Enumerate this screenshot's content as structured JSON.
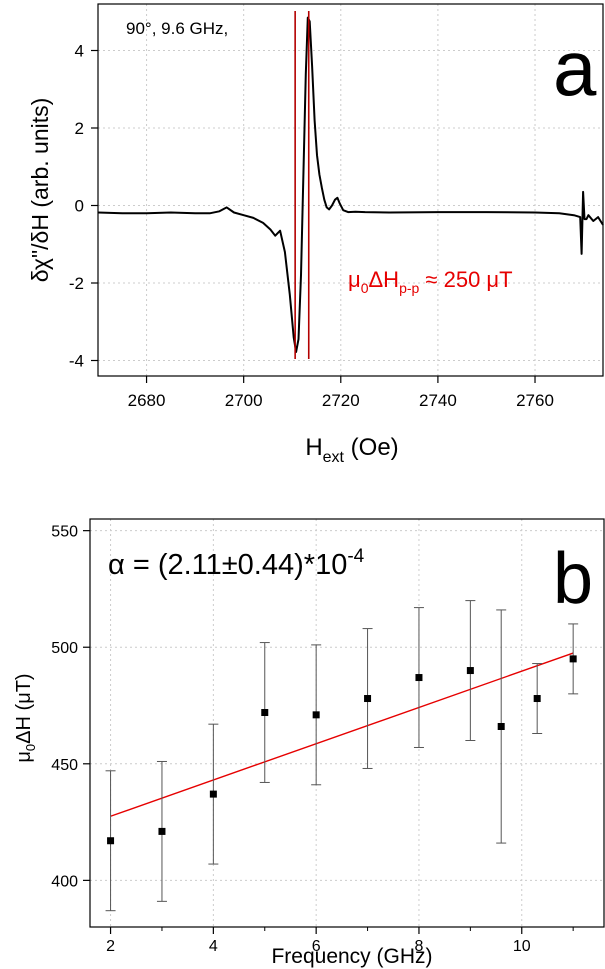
{
  "colors": {
    "trace": "#000000",
    "marker": "#b30000",
    "fit": "#e60000",
    "errbar": "#555555",
    "grid": "#cccccc"
  },
  "chart_data": [
    {
      "panel": "a",
      "type": "line",
      "panel_label": "a",
      "annotation": "90°, 9.6 GHz,",
      "xlabel_main": "H",
      "xlabel_sub": "ext",
      "xlabel_unit": " (Oe)",
      "ylabel": "δχ\"/δH (arb. units)",
      "xlim": [
        2670,
        2774
      ],
      "ylim": [
        -4.4,
        5.2
      ],
      "xticks": [
        2680,
        2700,
        2720,
        2740,
        2760
      ],
      "yticks": [
        -4,
        -2,
        0,
        2,
        4
      ],
      "grid": true,
      "linewidth_label": {
        "prefix": "μ",
        "sub1": "0",
        "mid": "ΔH",
        "sub2": "p-p",
        "suffix": " ≈ 250 μT"
      },
      "markers_x": [
        2710.6,
        2713.4
      ],
      "series": [
        {
          "x": [
            2670,
            2675,
            2680,
            2685,
            2690,
            2693,
            2695,
            2696.5,
            2698,
            2700,
            2702,
            2704,
            2705.5,
            2706.5,
            2707.5,
            2708.5,
            2709.5,
            2710.3,
            2710.8,
            2711.3,
            2711.8,
            2712.3,
            2712.8,
            2713.2,
            2713.6,
            2714.1,
            2714.6,
            2715.1,
            2715.6,
            2716.1,
            2716.6,
            2717.1,
            2717.6,
            2718.2,
            2718.8,
            2719.3,
            2719.8,
            2720.5,
            2721.5,
            2723,
            2725,
            2730,
            2740,
            2750,
            2760,
            2765,
            2768,
            2769.3,
            2769.6,
            2769.9,
            2770.2,
            2770.6,
            2771,
            2772,
            2773,
            2774
          ],
          "y": [
            -0.18,
            -0.2,
            -0.2,
            -0.18,
            -0.2,
            -0.2,
            -0.15,
            -0.05,
            -0.18,
            -0.25,
            -0.32,
            -0.45,
            -0.62,
            -0.78,
            -0.65,
            -1.2,
            -2.3,
            -3.4,
            -3.78,
            -3.45,
            -1.8,
            0.8,
            3.4,
            4.85,
            4.75,
            3.6,
            2.2,
            1.3,
            0.8,
            0.45,
            0.15,
            -0.05,
            -0.1,
            0.0,
            0.15,
            0.2,
            0.05,
            -0.12,
            -0.17,
            -0.16,
            -0.17,
            -0.18,
            -0.17,
            -0.17,
            -0.18,
            -0.2,
            -0.25,
            -0.3,
            -1.25,
            0.35,
            -0.35,
            -0.35,
            -0.25,
            -0.4,
            -0.3,
            -0.5
          ]
        }
      ]
    },
    {
      "panel": "b",
      "type": "scatter",
      "panel_label": "b",
      "xlabel": "Frequency (GHz)",
      "ylabel_prefix": "μ",
      "ylabel_sub": "0",
      "ylabel_suffix": "ΔH (μT)",
      "xlim": [
        1.6,
        11.6
      ],
      "ylim": [
        380,
        555
      ],
      "xticks": [
        2,
        4,
        6,
        8,
        10
      ],
      "yticks": [
        400,
        450,
        500,
        550
      ],
      "grid": true,
      "alpha_text": "α = (2.11±0.44)*10",
      "alpha_exp": "-4",
      "series": [
        {
          "x": [
            2,
            3,
            4,
            5,
            6,
            7,
            8,
            9,
            9.6,
            10.3,
            11
          ],
          "y": [
            417,
            421,
            437,
            472,
            471,
            478,
            487,
            490,
            466,
            478,
            495
          ],
          "err": [
            30,
            30,
            30,
            30,
            30,
            30,
            30,
            30,
            50,
            15,
            15
          ]
        }
      ],
      "fit": {
        "x": [
          2,
          11
        ],
        "y": [
          427.5,
          497.5
        ]
      }
    }
  ]
}
